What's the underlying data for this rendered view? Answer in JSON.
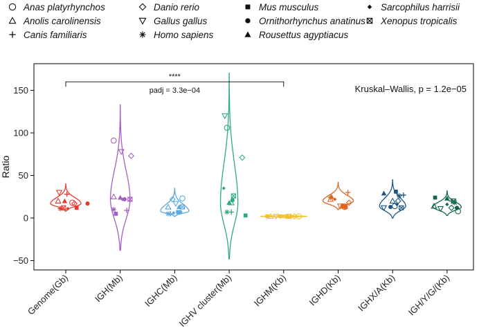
{
  "chart_data": {
    "type": "violin",
    "ylabel": "Ratio",
    "ylim": [
      -58,
      176
    ],
    "yticks": [
      -50,
      0,
      50,
      100,
      150
    ],
    "grid": false,
    "legend_position": "top",
    "categories": [
      "Genome(Gb)",
      "IGH(Mb)",
      "IGHC(Mb)",
      "IGHV cluster(Mb)",
      "IGHM(Kb)",
      "IGHD(Kb)",
      "IGHX/A(Kb)",
      "IGH/Y/G/(Kb)"
    ],
    "colors": [
      "#e8392f",
      "#a45fc2",
      "#5aa8dc",
      "#2daa7e",
      "#f2c22e",
      "#e0651f",
      "#1e5582",
      "#11654d"
    ],
    "species": [
      {
        "name": "Anas platyrhynchos",
        "symbol": "circle-open"
      },
      {
        "name": "Anolis carolinensis",
        "symbol": "triangle-open"
      },
      {
        "name": "Canis familiaris",
        "symbol": "plus"
      },
      {
        "name": "Danio rerio",
        "symbol": "diamond-open"
      },
      {
        "name": "Gallus gallus",
        "symbol": "triangle-down-open"
      },
      {
        "name": "Homo sapiens",
        "symbol": "asterisk"
      },
      {
        "name": "Mus musculus",
        "symbol": "square-filled"
      },
      {
        "name": "Ornithorhynchus anatinus",
        "symbol": "circle-filled"
      },
      {
        "name": "Rousettus agyptiacus",
        "symbol": "triangle-filled"
      },
      {
        "name": "Sarcophilus harrisii",
        "symbol": "diamond-filled"
      },
      {
        "name": "Xenopus tropicalis",
        "symbol": "square-cross"
      }
    ],
    "violins": [
      {
        "category": "Genome(Gb)",
        "min": 8,
        "max": 40,
        "mode": 17,
        "width": 0.28
      },
      {
        "category": "IGH(Mb)",
        "min": -38,
        "max": 133,
        "mode": 22,
        "width": 0.18
      },
      {
        "category": "IGHC(Mb)",
        "min": 2,
        "max": 35,
        "mode": 8,
        "width": 0.26
      },
      {
        "category": "IGHV cluster(Mb)",
        "min": -48,
        "max": 170,
        "mode": 18,
        "width": 0.16
      },
      {
        "category": "IGHM(Kb)",
        "min": 0.5,
        "max": 3.5,
        "mode": 2,
        "width": 0.42
      },
      {
        "category": "IGHD(Kb)",
        "min": 10,
        "max": 42,
        "mode": 20,
        "width": 0.28
      },
      {
        "category": "IGHX/A(Kb)",
        "min": 0,
        "max": 45,
        "mode": 14,
        "width": 0.24
      },
      {
        "category": "IGH/Y/G/(Kb)",
        "min": 3,
        "max": 32,
        "mode": 13,
        "width": 0.26
      }
    ],
    "points": [
      {
        "category": "Genome(Gb)",
        "species": "Anas platyrhynchos",
        "value": 18,
        "jitter": 0.12
      },
      {
        "category": "Genome(Gb)",
        "species": "Anolis carolinensis",
        "value": 20,
        "jitter": -0.14
      },
      {
        "category": "Genome(Gb)",
        "species": "Canis familiaris",
        "value": 28,
        "jitter": 0.02
      },
      {
        "category": "Genome(Gb)",
        "species": "Danio rerio",
        "value": 17,
        "jitter": 0.16
      },
      {
        "category": "Genome(Gb)",
        "species": "Gallus gallus",
        "value": 30,
        "jitter": -0.12
      },
      {
        "category": "Genome(Gb)",
        "species": "Homo sapiens",
        "value": 11,
        "jitter": -0.1
      },
      {
        "category": "Genome(Gb)",
        "species": "Mus musculus",
        "value": 12,
        "jitter": 0.2
      },
      {
        "category": "Genome(Gb)",
        "species": "Ornithorhynchus anatinus",
        "value": 17,
        "jitter": 0.4
      },
      {
        "category": "Genome(Gb)",
        "species": "Rousettus agyptiacus",
        "value": 20,
        "jitter": -0.02
      },
      {
        "category": "Genome(Gb)",
        "species": "Sarcophilus harrisii",
        "value": 11,
        "jitter": 0.04
      },
      {
        "category": "Genome(Gb)",
        "species": "Xenopus tropicalis",
        "value": 12,
        "jitter": -0.04
      },
      {
        "category": "IGH(Mb)",
        "species": "Anas platyrhynchos",
        "value": 91,
        "jitter": -0.12
      },
      {
        "category": "IGH(Mb)",
        "species": "Anolis carolinensis",
        "value": 25,
        "jitter": -0.12
      },
      {
        "category": "IGH(Mb)",
        "species": "Canis familiaris",
        "value": 9,
        "jitter": 0.12
      },
      {
        "category": "IGH(Mb)",
        "species": "Danio rerio",
        "value": 73,
        "jitter": 0.2
      },
      {
        "category": "IGH(Mb)",
        "species": "Gallus gallus",
        "value": 78,
        "jitter": 0.02
      },
      {
        "category": "IGH(Mb)",
        "species": "Homo sapiens",
        "value": 10,
        "jitter": -0.12
      },
      {
        "category": "IGH(Mb)",
        "species": "Mus musculus",
        "value": 5,
        "jitter": -0.08
      },
      {
        "category": "IGH(Mb)",
        "species": "Ornithorhynchus anatinus",
        "value": 22,
        "jitter": 0.08
      },
      {
        "category": "IGH(Mb)",
        "species": "Rousettus agyptiacus",
        "value": 24,
        "jitter": 0.0
      },
      {
        "category": "IGH(Mb)",
        "species": "Sarcophilus harrisii",
        "value": 22,
        "jitter": 0.04
      },
      {
        "category": "IGH(Mb)",
        "species": "Xenopus tropicalis",
        "value": 22,
        "jitter": 0.18
      },
      {
        "category": "IGHC(Mb)",
        "species": "Anas platyrhynchos",
        "value": 23,
        "jitter": 0.14
      },
      {
        "category": "IGHC(Mb)",
        "species": "Anolis carolinensis",
        "value": 13,
        "jitter": -0.12
      },
      {
        "category": "IGHC(Mb)",
        "species": "Canis familiaris",
        "value": 5,
        "jitter": -0.08
      },
      {
        "category": "IGHC(Mb)",
        "species": "Danio rerio",
        "value": 22,
        "jitter": -0.04
      },
      {
        "category": "IGHC(Mb)",
        "species": "Gallus gallus",
        "value": 17,
        "jitter": 0.02
      },
      {
        "category": "IGHC(Mb)",
        "species": "Homo sapiens",
        "value": 5,
        "jitter": -0.12
      },
      {
        "category": "IGHC(Mb)",
        "species": "Mus musculus",
        "value": 7,
        "jitter": 0.06
      },
      {
        "category": "IGHC(Mb)",
        "species": "Ornithorhynchus anatinus",
        "value": 7,
        "jitter": 0.1
      },
      {
        "category": "IGHC(Mb)",
        "species": "Rousettus agyptiacus",
        "value": 13,
        "jitter": 0.08
      },
      {
        "category": "IGHC(Mb)",
        "species": "Sarcophilus harrisii",
        "value": 6,
        "jitter": -0.02
      },
      {
        "category": "IGHC(Mb)",
        "species": "Xenopus tropicalis",
        "value": 13,
        "jitter": 0.14
      },
      {
        "category": "IGHV cluster(Mb)",
        "species": "Anas platyrhynchos",
        "value": 106,
        "jitter": -0.04
      },
      {
        "category": "IGHV cluster(Mb)",
        "species": "Anolis carolinensis",
        "value": 18,
        "jitter": 0.04
      },
      {
        "category": "IGHV cluster(Mb)",
        "species": "Canis familiaris",
        "value": 7,
        "jitter": 0.04
      },
      {
        "category": "IGHV cluster(Mb)",
        "species": "Danio rerio",
        "value": 71,
        "jitter": 0.24
      },
      {
        "category": "IGHV cluster(Mb)",
        "species": "Gallus gallus",
        "value": 120,
        "jitter": -0.08
      },
      {
        "category": "IGHV cluster(Mb)",
        "species": "Homo sapiens",
        "value": 7,
        "jitter": -0.04
      },
      {
        "category": "IGHV cluster(Mb)",
        "species": "Mus musculus",
        "value": 3,
        "jitter": 0.3
      },
      {
        "category": "IGHV cluster(Mb)",
        "species": "Ornithorhynchus anatinus",
        "value": 21,
        "jitter": 0.06
      },
      {
        "category": "IGHV cluster(Mb)",
        "species": "Rousettus agyptiacus",
        "value": 18,
        "jitter": 0.0
      },
      {
        "category": "IGHV cluster(Mb)",
        "species": "Sarcophilus harrisii",
        "value": 35,
        "jitter": -0.1
      },
      {
        "category": "IGHV cluster(Mb)",
        "species": "Xenopus tropicalis",
        "value": 26,
        "jitter": 0.08
      },
      {
        "category": "IGHM(Kb)",
        "species": "Anas platyrhynchos",
        "value": 2,
        "jitter": 0.28
      },
      {
        "category": "IGHM(Kb)",
        "species": "Anolis carolinensis",
        "value": 2,
        "jitter": -0.24
      },
      {
        "category": "IGHM(Kb)",
        "species": "Canis familiaris",
        "value": 2,
        "jitter": 0.14
      },
      {
        "category": "IGHM(Kb)",
        "species": "Danio rerio",
        "value": 2,
        "jitter": 0.2
      },
      {
        "category": "IGHM(Kb)",
        "species": "Gallus gallus",
        "value": 2,
        "jitter": -0.14
      },
      {
        "category": "IGHM(Kb)",
        "species": "Homo sapiens",
        "value": 2,
        "jitter": 0.04
      },
      {
        "category": "IGHM(Kb)",
        "species": "Mus musculus",
        "value": 2,
        "jitter": -0.3
      },
      {
        "category": "IGHM(Kb)",
        "species": "Ornithorhynchus anatinus",
        "value": 2,
        "jitter": -0.06
      },
      {
        "category": "IGHM(Kb)",
        "species": "Rousettus agyptiacus",
        "value": 2,
        "jitter": 0.08
      },
      {
        "category": "IGHM(Kb)",
        "species": "Sarcophilus harrisii",
        "value": 2,
        "jitter": -0.02
      },
      {
        "category": "IGHM(Kb)",
        "species": "Xenopus tropicalis",
        "value": 2,
        "jitter": 0.1
      },
      {
        "category": "IGHD(Kb)",
        "species": "Anas platyrhynchos",
        "value": 13,
        "jitter": 0.12
      },
      {
        "category": "IGHD(Kb)",
        "species": "Anolis carolinensis",
        "value": 22,
        "jitter": -0.14
      },
      {
        "category": "IGHD(Kb)",
        "species": "Canis familiaris",
        "value": 30,
        "jitter": 0.18
      },
      {
        "category": "IGHD(Kb)",
        "species": "Danio rerio",
        "value": 18,
        "jitter": 0.2
      },
      {
        "category": "IGHD(Kb)",
        "species": "Gallus gallus",
        "value": 14,
        "jitter": 0.04
      },
      {
        "category": "IGHD(Kb)",
        "species": "Homo sapiens",
        "value": 24,
        "jitter": -0.14
      },
      {
        "category": "IGHD(Kb)",
        "species": "Mus musculus",
        "value": 13,
        "jitter": 0.14
      },
      {
        "category": "IGHD(Kb)",
        "species": "Ornithorhynchus anatinus",
        "value": 14,
        "jitter": 0.08
      },
      {
        "category": "IGHD(Kb)",
        "species": "Rousettus agyptiacus",
        "value": 25,
        "jitter": -0.12
      },
      {
        "category": "IGHD(Kb)",
        "species": "Sarcophilus harrisii",
        "value": 22,
        "jitter": -0.06
      },
      {
        "category": "IGHD(Kb)",
        "species": "Xenopus tropicalis",
        "value": 14,
        "jitter": 0.1
      },
      {
        "category": "IGHX/A(Kb)",
        "species": "Anas platyrhynchos",
        "value": 14,
        "jitter": 0.04
      },
      {
        "category": "IGHX/A(Kb)",
        "species": "Anolis carolinensis",
        "value": 20,
        "jitter": 0.0
      },
      {
        "category": "IGHX/A(Kb)",
        "species": "Canis familiaris",
        "value": 27,
        "jitter": 0.2
      },
      {
        "category": "IGHX/A(Kb)",
        "species": "Danio rerio",
        "value": 20,
        "jitter": 0.1
      },
      {
        "category": "IGHX/A(Kb)",
        "species": "Gallus gallus",
        "value": 12,
        "jitter": -0.16
      },
      {
        "category": "IGHX/A(Kb)",
        "species": "Homo sapiens",
        "value": 26,
        "jitter": 0.12
      },
      {
        "category": "IGHX/A(Kb)",
        "species": "Mus musculus",
        "value": 31,
        "jitter": 0.06
      },
      {
        "category": "IGHX/A(Kb)",
        "species": "Ornithorhynchus anatinus",
        "value": 13,
        "jitter": -0.04
      },
      {
        "category": "IGHX/A(Kb)",
        "species": "Rousettus agyptiacus",
        "value": 29,
        "jitter": -0.16
      },
      {
        "category": "IGHX/A(Kb)",
        "species": "Sarcophilus harrisii",
        "value": 16,
        "jitter": 0.08
      },
      {
        "category": "IGHX/A(Kb)",
        "species": "Xenopus tropicalis",
        "value": 12,
        "jitter": 0.16
      },
      {
        "category": "IGH/Y/G/(Kb)",
        "species": "Anas platyrhynchos",
        "value": 8,
        "jitter": 0.2
      },
      {
        "category": "IGH/Y/G/(Kb)",
        "species": "Anolis carolinensis",
        "value": 14,
        "jitter": -0.24
      },
      {
        "category": "IGH/Y/G/(Kb)",
        "species": "Canis familiaris",
        "value": 20,
        "jitter": 0.08
      },
      {
        "category": "IGH/Y/G/(Kb)",
        "species": "Danio rerio",
        "value": 12,
        "jitter": 0.08
      },
      {
        "category": "IGH/Y/G/(Kb)",
        "species": "Gallus gallus",
        "value": 11,
        "jitter": -0.12
      },
      {
        "category": "IGH/Y/G/(Kb)",
        "species": "Homo sapiens",
        "value": 18,
        "jitter": 0.14
      },
      {
        "category": "IGH/Y/G/(Kb)",
        "species": "Mus musculus",
        "value": 24,
        "jitter": -0.22
      },
      {
        "category": "IGH/Y/G/(Kb)",
        "species": "Ornithorhynchus anatinus",
        "value": 12,
        "jitter": 0.18
      },
      {
        "category": "IGH/Y/G/(Kb)",
        "species": "Rousettus agyptiacus",
        "value": 23,
        "jitter": 0.0
      },
      {
        "category": "IGH/Y/G/(Kb)",
        "species": "Sarcophilus harrisii",
        "value": 16,
        "jitter": 0.0
      },
      {
        "category": "IGH/Y/G/(Kb)",
        "species": "Xenopus tropicalis",
        "value": 20,
        "jitter": 0.12
      }
    ],
    "annotations": {
      "kruskal": "Kruskal–Wallis, p = 1.2e−05",
      "bracket": {
        "from": "Genome(Gb)",
        "to": "IGHM(Kb)",
        "value": 160,
        "stars": "****",
        "padj": "padj = 3.3e−04"
      }
    }
  }
}
